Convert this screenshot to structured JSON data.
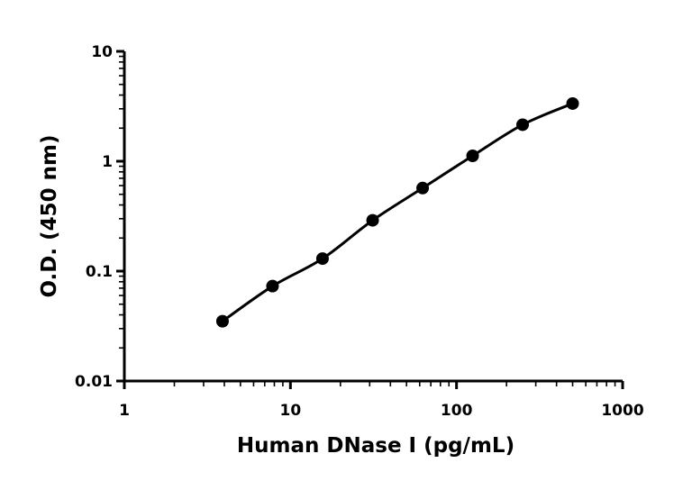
{
  "chart_data": {
    "type": "scatter",
    "xlabel": "Human DNase I (pg/mL)",
    "ylabel": "O.D. (450 nm)",
    "xscale": "log",
    "yscale": "log",
    "xlim": [
      1,
      1000
    ],
    "ylim": [
      0.01,
      10
    ],
    "xticks": [
      "1",
      "10",
      "100",
      "1000"
    ],
    "yticks": [
      "0.01",
      "0.1",
      "1",
      "10"
    ],
    "grid": false,
    "series": [
      {
        "x": [
          3.9,
          7.8,
          15.6,
          31.25,
          62.5,
          125,
          250,
          500
        ],
        "y": [
          0.035,
          0.073,
          0.13,
          0.29,
          0.57,
          1.12,
          2.15,
          3.35
        ],
        "marker": "circle",
        "line": "fitted curve",
        "color": "#000000"
      }
    ]
  }
}
